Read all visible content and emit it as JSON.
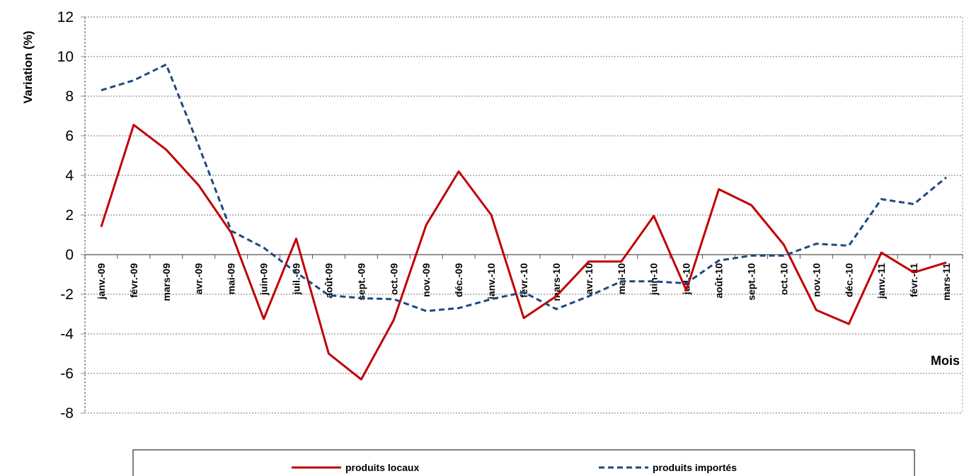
{
  "chart_data": {
    "type": "line",
    "ylabel": "Variation (%)",
    "xlabel": "Mois",
    "ylim": [
      -8,
      12
    ],
    "yticks": [
      -8,
      -6,
      -4,
      -2,
      0,
      2,
      4,
      6,
      8,
      10,
      12
    ],
    "grid": true,
    "legend_position": "bottom",
    "categories": [
      "janv.-09",
      "févr.-09",
      "mars-09",
      "avr.-09",
      "mai-09",
      "juin-09",
      "juil.-09",
      "août-09",
      "sept.-09",
      "oct.-09",
      "nov.-09",
      "déc.-09",
      "janv.-10",
      "févr.-10",
      "mars-10",
      "avr.-10",
      "mai-10",
      "juin-10",
      "juil.-10",
      "août-10",
      "sept.-10",
      "oct.-10",
      "nov.-10",
      "déc.-10",
      "janv.-11",
      "févr.-11",
      "mars-11"
    ],
    "series": [
      {
        "name": "produits locaux",
        "color": "#c00000",
        "style": "solid",
        "values": [
          1.4,
          6.55,
          5.3,
          3.5,
          1.1,
          -3.25,
          0.8,
          -5.0,
          -6.3,
          -3.3,
          1.5,
          4.2,
          2.0,
          -3.2,
          -2.1,
          -0.35,
          -0.35,
          1.95,
          -1.8,
          3.3,
          2.5,
          0.5,
          -2.8,
          -3.5,
          0.1,
          -0.9,
          -0.4
        ]
      },
      {
        "name": "produits importés",
        "color": "#1f497d",
        "style": "dashed",
        "values": [
          8.3,
          8.8,
          9.6,
          5.5,
          1.2,
          0.35,
          -0.9,
          -2.05,
          -2.2,
          -2.25,
          -2.85,
          -2.7,
          -2.25,
          -1.9,
          -2.75,
          -2.1,
          -1.35,
          -1.35,
          -1.45,
          -0.3,
          -0.05,
          -0.05,
          0.55,
          0.45,
          2.8,
          2.55,
          3.9
        ]
      }
    ]
  }
}
